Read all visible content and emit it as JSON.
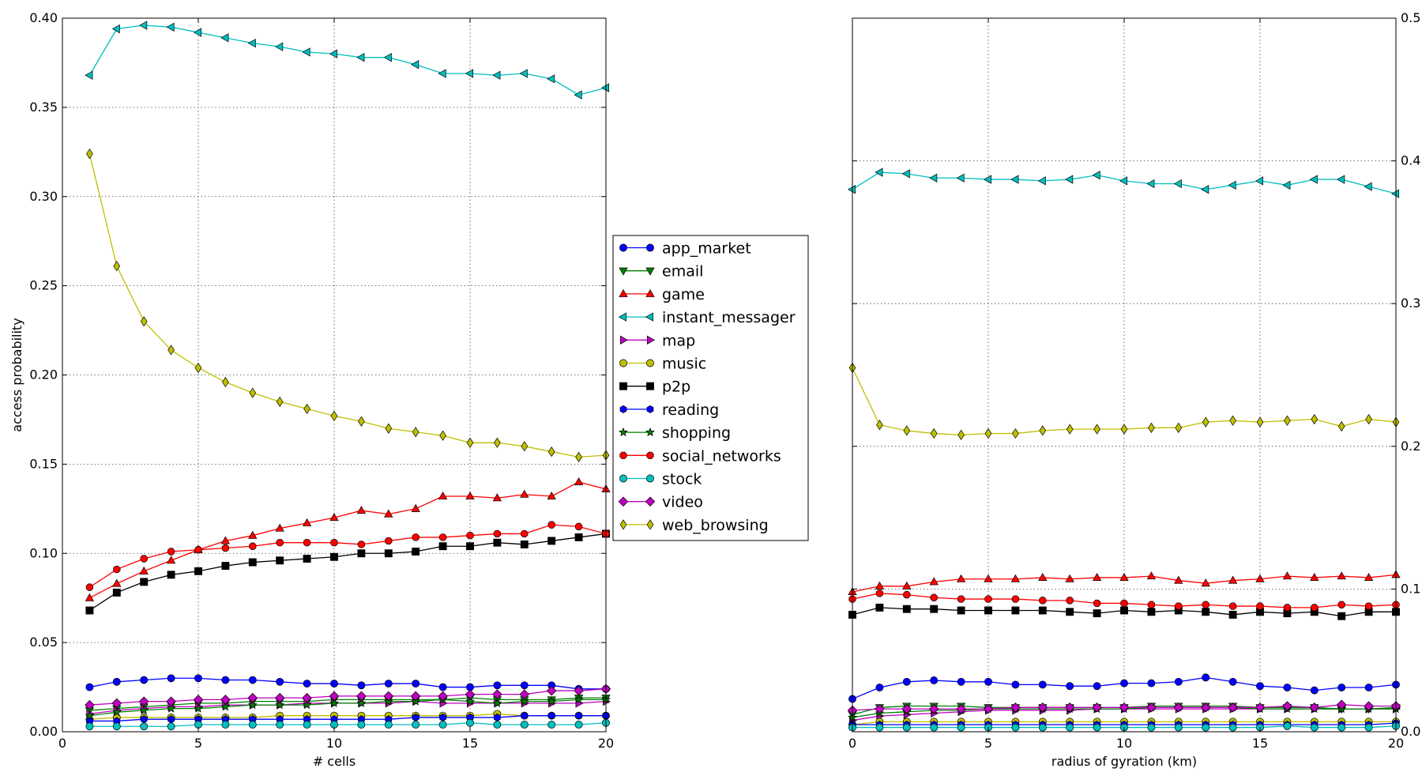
{
  "chart_data": [
    {
      "type": "line",
      "xlabel": "# cells",
      "ylabel": "access probability",
      "xlim": [
        0,
        20
      ],
      "ylim": [
        0,
        0.4
      ],
      "yaxis_side": "left",
      "x_ticks": [
        0,
        5,
        10,
        15,
        20
      ],
      "y_ticks": [
        0.0,
        0.05,
        0.1,
        0.15,
        0.2,
        0.25,
        0.3,
        0.35,
        0.4
      ],
      "x_tick_labels": [
        "0",
        "5",
        "10",
        "15",
        "20"
      ],
      "y_tick_labels": [
        "0.00",
        "0.05",
        "0.10",
        "0.15",
        "0.20",
        "0.25",
        "0.30",
        "0.35",
        "0.40"
      ],
      "grid": true,
      "x": [
        1,
        2,
        3,
        4,
        5,
        6,
        7,
        8,
        9,
        10,
        11,
        12,
        13,
        14,
        15,
        16,
        17,
        18,
        19,
        20
      ],
      "series": [
        {
          "name": "app_market",
          "values": [
            0.025,
            0.028,
            0.029,
            0.03,
            0.03,
            0.029,
            0.029,
            0.028,
            0.027,
            0.027,
            0.026,
            0.027,
            0.027,
            0.025,
            0.025,
            0.026,
            0.026,
            0.026,
            0.024,
            0.024
          ]
        },
        {
          "name": "email",
          "values": [
            0.012,
            0.013,
            0.014,
            0.015,
            0.016,
            0.016,
            0.017,
            0.017,
            0.017,
            0.018,
            0.018,
            0.018,
            0.018,
            0.018,
            0.019,
            0.018,
            0.018,
            0.018,
            0.019,
            0.019
          ]
        },
        {
          "name": "game",
          "values": [
            0.075,
            0.083,
            0.09,
            0.096,
            0.102,
            0.107,
            0.11,
            0.114,
            0.117,
            0.12,
            0.124,
            0.122,
            0.125,
            0.132,
            0.132,
            0.131,
            0.133,
            0.132,
            0.14,
            0.136
          ]
        },
        {
          "name": "instant_messager",
          "values": [
            0.368,
            0.394,
            0.396,
            0.395,
            0.392,
            0.389,
            0.386,
            0.384,
            0.381,
            0.38,
            0.378,
            0.378,
            0.374,
            0.369,
            0.369,
            0.368,
            0.369,
            0.366,
            0.357,
            0.361
          ]
        },
        {
          "name": "map",
          "values": [
            0.01,
            0.012,
            0.013,
            0.014,
            0.014,
            0.015,
            0.015,
            0.015,
            0.016,
            0.016,
            0.016,
            0.016,
            0.017,
            0.016,
            0.016,
            0.016,
            0.016,
            0.016,
            0.016,
            0.017
          ]
        },
        {
          "name": "music",
          "values": [
            0.007,
            0.008,
            0.008,
            0.008,
            0.008,
            0.008,
            0.008,
            0.009,
            0.009,
            0.009,
            0.009,
            0.009,
            0.009,
            0.009,
            0.009,
            0.01,
            0.009,
            0.009,
            0.009,
            0.009
          ]
        },
        {
          "name": "p2p",
          "values": [
            0.068,
            0.078,
            0.084,
            0.088,
            0.09,
            0.093,
            0.095,
            0.096,
            0.097,
            0.098,
            0.1,
            0.1,
            0.101,
            0.104,
            0.104,
            0.106,
            0.105,
            0.107,
            0.109,
            0.111
          ]
        },
        {
          "name": "reading",
          "values": [
            0.006,
            0.006,
            0.007,
            0.007,
            0.007,
            0.007,
            0.007,
            0.007,
            0.007,
            0.007,
            0.007,
            0.007,
            0.008,
            0.008,
            0.008,
            0.008,
            0.009,
            0.009,
            0.009,
            0.009
          ]
        },
        {
          "name": "shopping",
          "values": [
            0.009,
            0.011,
            0.012,
            0.013,
            0.013,
            0.014,
            0.015,
            0.015,
            0.015,
            0.016,
            0.016,
            0.017,
            0.017,
            0.018,
            0.017,
            0.016,
            0.017,
            0.017,
            0.018,
            0.018
          ]
        },
        {
          "name": "social_networks",
          "values": [
            0.081,
            0.091,
            0.097,
            0.101,
            0.102,
            0.103,
            0.104,
            0.106,
            0.106,
            0.106,
            0.105,
            0.107,
            0.109,
            0.109,
            0.11,
            0.111,
            0.111,
            0.116,
            0.115,
            0.111
          ]
        },
        {
          "name": "stock",
          "values": [
            0.003,
            0.003,
            0.003,
            0.003,
            0.004,
            0.004,
            0.004,
            0.004,
            0.004,
            0.004,
            0.004,
            0.004,
            0.004,
            0.004,
            0.005,
            0.004,
            0.004,
            0.004,
            0.004,
            0.005
          ]
        },
        {
          "name": "video",
          "values": [
            0.015,
            0.016,
            0.017,
            0.017,
            0.018,
            0.018,
            0.019,
            0.019,
            0.019,
            0.02,
            0.02,
            0.02,
            0.02,
            0.02,
            0.021,
            0.021,
            0.021,
            0.023,
            0.023,
            0.024
          ]
        },
        {
          "name": "web_browsing",
          "values": [
            0.324,
            0.261,
            0.23,
            0.214,
            0.204,
            0.196,
            0.19,
            0.185,
            0.181,
            0.177,
            0.174,
            0.17,
            0.168,
            0.166,
            0.162,
            0.162,
            0.16,
            0.157,
            0.154,
            0.155
          ]
        }
      ]
    },
    {
      "type": "line",
      "xlabel": "radius of gyration (km)",
      "ylabel": "",
      "xlim": [
        0,
        20
      ],
      "ylim": [
        0,
        0.5
      ],
      "yaxis_side": "right",
      "x_ticks": [
        0,
        5,
        10,
        15,
        20
      ],
      "y_ticks": [
        0.0,
        0.1,
        0.2,
        0.3,
        0.4,
        0.5
      ],
      "x_tick_labels": [
        "0",
        "5",
        "10",
        "15",
        "20"
      ],
      "y_tick_labels": [
        "0.0",
        "0.1",
        "0.2",
        "0.3",
        "0.4",
        "0.5"
      ],
      "grid": true,
      "x": [
        0,
        1,
        2,
        3,
        4,
        5,
        6,
        7,
        8,
        9,
        10,
        11,
        12,
        13,
        14,
        15,
        16,
        17,
        18,
        19,
        20
      ],
      "series": [
        {
          "name": "app_market",
          "values": [
            0.023,
            0.031,
            0.035,
            0.036,
            0.035,
            0.035,
            0.033,
            0.033,
            0.032,
            0.032,
            0.034,
            0.034,
            0.035,
            0.038,
            0.035,
            0.032,
            0.031,
            0.029,
            0.031,
            0.031,
            0.033
          ]
        },
        {
          "name": "email",
          "values": [
            0.012,
            0.017,
            0.018,
            0.018,
            0.018,
            0.017,
            0.017,
            0.017,
            0.017,
            0.017,
            0.017,
            0.018,
            0.018,
            0.018,
            0.018,
            0.017,
            0.017,
            0.017,
            0.016,
            0.016,
            0.017
          ]
        },
        {
          "name": "game",
          "values": [
            0.098,
            0.102,
            0.102,
            0.105,
            0.107,
            0.107,
            0.107,
            0.108,
            0.107,
            0.108,
            0.108,
            0.109,
            0.106,
            0.104,
            0.106,
            0.107,
            0.109,
            0.108,
            0.109,
            0.108,
            0.11
          ]
        },
        {
          "name": "instant_messager",
          "values": [
            0.38,
            0.392,
            0.391,
            0.388,
            0.388,
            0.387,
            0.387,
            0.386,
            0.387,
            0.39,
            0.386,
            0.384,
            0.384,
            0.38,
            0.383,
            0.386,
            0.383,
            0.387,
            0.387,
            0.382,
            0.377
          ]
        },
        {
          "name": "map",
          "values": [
            0.008,
            0.011,
            0.012,
            0.013,
            0.014,
            0.015,
            0.015,
            0.015,
            0.015,
            0.016,
            0.016,
            0.016,
            0.016,
            0.016,
            0.016,
            0.016,
            0.016,
            0.016,
            0.016,
            0.016,
            0.016
          ]
        },
        {
          "name": "music",
          "values": [
            0.005,
            0.007,
            0.007,
            0.007,
            0.007,
            0.007,
            0.007,
            0.007,
            0.007,
            0.007,
            0.007,
            0.007,
            0.007,
            0.007,
            0.007,
            0.007,
            0.007,
            0.007,
            0.007,
            0.007,
            0.007
          ]
        },
        {
          "name": "p2p",
          "values": [
            0.082,
            0.087,
            0.086,
            0.086,
            0.085,
            0.085,
            0.085,
            0.085,
            0.084,
            0.083,
            0.085,
            0.084,
            0.085,
            0.084,
            0.082,
            0.084,
            0.083,
            0.084,
            0.081,
            0.084,
            0.084
          ]
        },
        {
          "name": "reading",
          "values": [
            0.005,
            0.005,
            0.005,
            0.005,
            0.005,
            0.005,
            0.005,
            0.005,
            0.005,
            0.005,
            0.005,
            0.005,
            0.005,
            0.005,
            0.005,
            0.005,
            0.005,
            0.005,
            0.005,
            0.005,
            0.006
          ]
        },
        {
          "name": "shopping",
          "values": [
            0.01,
            0.013,
            0.014,
            0.015,
            0.015,
            0.016,
            0.016,
            0.016,
            0.016,
            0.016,
            0.016,
            0.017,
            0.017,
            0.017,
            0.017,
            0.016,
            0.016,
            0.016,
            0.016,
            0.016,
            0.016
          ]
        },
        {
          "name": "social_networks",
          "values": [
            0.093,
            0.097,
            0.096,
            0.094,
            0.093,
            0.093,
            0.093,
            0.092,
            0.092,
            0.09,
            0.09,
            0.089,
            0.088,
            0.089,
            0.088,
            0.088,
            0.087,
            0.087,
            0.089,
            0.088,
            0.089
          ]
        },
        {
          "name": "stock",
          "values": [
            0.003,
            0.003,
            0.003,
            0.003,
            0.003,
            0.003,
            0.003,
            0.003,
            0.003,
            0.003,
            0.003,
            0.003,
            0.003,
            0.003,
            0.003,
            0.003,
            0.004,
            0.003,
            0.003,
            0.003,
            0.004
          ]
        },
        {
          "name": "video",
          "values": [
            0.015,
            0.016,
            0.016,
            0.016,
            0.016,
            0.016,
            0.017,
            0.017,
            0.017,
            0.017,
            0.017,
            0.017,
            0.017,
            0.017,
            0.017,
            0.017,
            0.018,
            0.017,
            0.019,
            0.018,
            0.018
          ]
        },
        {
          "name": "web_browsing",
          "values": [
            0.255,
            0.215,
            0.211,
            0.209,
            0.208,
            0.209,
            0.209,
            0.211,
            0.212,
            0.212,
            0.212,
            0.213,
            0.213,
            0.217,
            0.218,
            0.217,
            0.218,
            0.219,
            0.214,
            0.219,
            0.217
          ]
        }
      ]
    }
  ],
  "legend": {
    "placement": "center, between panels",
    "entries": [
      {
        "name": "app_market",
        "color": "#0000ff",
        "marker": "circle"
      },
      {
        "name": "email",
        "color": "#008000",
        "marker": "triangle-down"
      },
      {
        "name": "game",
        "color": "#ff0000",
        "marker": "triangle-up"
      },
      {
        "name": "instant_messager",
        "color": "#00bfbf",
        "marker": "triangle-left"
      },
      {
        "name": "map",
        "color": "#bf00bf",
        "marker": "triangle-right"
      },
      {
        "name": "music",
        "color": "#bfbf00",
        "marker": "circle"
      },
      {
        "name": "p2p",
        "color": "#000000",
        "marker": "square"
      },
      {
        "name": "reading",
        "color": "#0000ff",
        "marker": "hexagon"
      },
      {
        "name": "shopping",
        "color": "#008000",
        "marker": "star"
      },
      {
        "name": "social_networks",
        "color": "#ff0000",
        "marker": "octagon"
      },
      {
        "name": "stock",
        "color": "#00bfbf",
        "marker": "circle"
      },
      {
        "name": "video",
        "color": "#bf00bf",
        "marker": "diamond"
      },
      {
        "name": "web_browsing",
        "color": "#bfbf00",
        "marker": "thin-diamond"
      }
    ]
  }
}
